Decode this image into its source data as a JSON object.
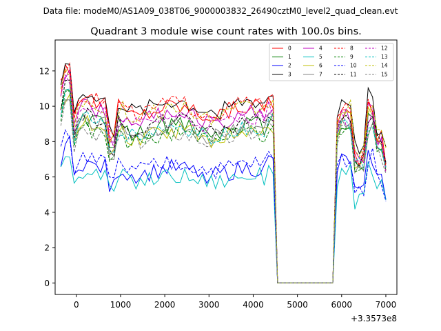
{
  "chart_data": {
    "type": "line",
    "suptitle": "Data file: modeM0/AS1A09_038T06_9000003832_26490cztM0_level2_quad_clean.evt",
    "title": "Quadrant 3 module wise count rates with 100.0s bins.",
    "xlabel": "",
    "ylabel": "",
    "x_offset_label": "+3.3573e8",
    "xlim": [
      -480,
      7250
    ],
    "ylim": [
      -0.65,
      13.75
    ],
    "xticks": [
      0,
      1000,
      2000,
      3000,
      4000,
      5000,
      6000,
      7000
    ],
    "xtick_labels": [
      "0",
      "1000",
      "2000",
      "3000",
      "4000",
      "5000",
      "6000",
      "7000"
    ],
    "yticks": [
      0,
      2,
      4,
      6,
      8,
      10,
      12
    ],
    "ytick_labels": [
      "0",
      "2",
      "4",
      "6",
      "8",
      "10",
      "12"
    ],
    "grid": false,
    "legend_position": "top-right",
    "segments": [
      {
        "x_start": -350,
        "x_end": 4550,
        "step": 100
      },
      {
        "x_start": 4550,
        "x_end": 5800,
        "step": 100
      },
      {
        "x_start": 5800,
        "x_end": 7050,
        "step": 100
      }
    ],
    "series": [
      {
        "name": "0",
        "color": "#ff0000",
        "style": "solid",
        "base": 9.8,
        "base2": 8.9
      },
      {
        "name": "1",
        "color": "#008000",
        "style": "solid",
        "base": 8.7,
        "base2": 8.3
      },
      {
        "name": "2",
        "color": "#0000ff",
        "style": "solid",
        "base": 6.3,
        "base2": 6.4
      },
      {
        "name": "3",
        "color": "#000000",
        "style": "solid",
        "base": 10.0,
        "base2": 9.6
      },
      {
        "name": "4",
        "color": "#bf00bf",
        "style": "solid",
        "base": 9.4,
        "base2": 8.8
      },
      {
        "name": "5",
        "color": "#00bfbf",
        "style": "solid",
        "base": 5.9,
        "base2": 5.8
      },
      {
        "name": "6",
        "color": "#bfbf00",
        "style": "solid",
        "base": 8.4,
        "base2": 8.6
      },
      {
        "name": "7",
        "color": "#808080",
        "style": "solid",
        "base": 8.6,
        "base2": 8.2
      },
      {
        "name": "8",
        "color": "#ff0000",
        "style": "dashed",
        "base": 9.9,
        "base2": 9.0
      },
      {
        "name": "9",
        "color": "#008000",
        "style": "dashed",
        "base": 8.3,
        "base2": 8.1
      },
      {
        "name": "10",
        "color": "#0000ff",
        "style": "dashed",
        "base": 6.6,
        "base2": 6.5
      },
      {
        "name": "11",
        "color": "#000000",
        "style": "dashed",
        "base": 8.9,
        "base2": 8.7
      },
      {
        "name": "12",
        "color": "#bf00bf",
        "style": "dashed",
        "base": 9.2,
        "base2": 8.6
      },
      {
        "name": "13",
        "color": "#00bfbf",
        "style": "dashed",
        "base": 8.6,
        "base2": 8.4
      },
      {
        "name": "14",
        "color": "#bfbf00",
        "style": "dashed",
        "base": 9.6,
        "base2": 9.2
      },
      {
        "name": "15",
        "color": "#808080",
        "style": "dashed",
        "base": 8.2,
        "base2": 8.0
      }
    ]
  }
}
